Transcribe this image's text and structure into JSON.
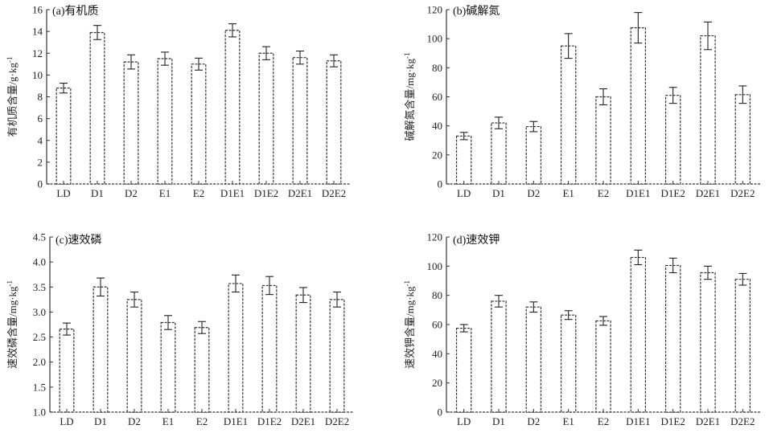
{
  "chart_data": [
    {
      "type": "bar",
      "title": "(a)有机质",
      "ylabel": "有机质含量/g·kg⁻¹",
      "categories": [
        "LD",
        "D1",
        "D2",
        "E1",
        "E2",
        "D1E1",
        "D1E2",
        "D2E1",
        "D2E2"
      ],
      "values": [
        8.8,
        13.9,
        11.2,
        11.5,
        11.0,
        14.1,
        12.0,
        11.6,
        11.3
      ],
      "errors": [
        0.45,
        0.65,
        0.65,
        0.6,
        0.55,
        0.6,
        0.6,
        0.6,
        0.55
      ],
      "ylim": [
        0,
        16
      ],
      "yticks": [
        "0",
        "2",
        "4",
        "6",
        "8",
        "10",
        "12",
        "14",
        "16"
      ],
      "grid": false,
      "error_bars": true
    },
    {
      "type": "bar",
      "title": "(b)碱解氮",
      "ylabel": "碱解氮含量/mg·kg⁻¹",
      "categories": [
        "LD",
        "D1",
        "D2",
        "E1",
        "E2",
        "D1E1",
        "D1E2",
        "D2E1",
        "D2E2"
      ],
      "values": [
        33,
        42,
        39.5,
        95,
        60,
        107.5,
        61,
        102,
        61.5
      ],
      "errors": [
        2.5,
        4,
        3.5,
        8.5,
        5.5,
        10.5,
        5.5,
        9.5,
        6
      ],
      "ylim": [
        0,
        120
      ],
      "yticks": [
        "0",
        "20",
        "40",
        "60",
        "80",
        "100",
        "120"
      ],
      "grid": false,
      "error_bars": true
    },
    {
      "type": "bar",
      "title": "(c)速效磷",
      "ylabel": "速效磷含量/mg·kg⁻¹",
      "categories": [
        "LD",
        "D1",
        "D2",
        "E1",
        "E2",
        "D1E1",
        "D1E2",
        "D2E1",
        "D2E2"
      ],
      "values": [
        2.66,
        3.5,
        3.25,
        2.79,
        2.69,
        3.57,
        3.53,
        3.34,
        3.25
      ],
      "errors": [
        0.12,
        0.18,
        0.15,
        0.14,
        0.12,
        0.17,
        0.18,
        0.15,
        0.15
      ],
      "ylim": [
        1.0,
        4.5
      ],
      "yticks": [
        "1.0",
        "1.5",
        "2.0",
        "2.5",
        "3.0",
        "3.5",
        "4.0",
        "4.5"
      ],
      "grid": false,
      "error_bars": true
    },
    {
      "type": "bar",
      "title": "(d)速效钾",
      "ylabel": "速效钾含量/mg·kg⁻¹",
      "categories": [
        "LD",
        "D1",
        "D2",
        "E1",
        "E2",
        "D1E1",
        "D1E2",
        "D2E1",
        "D2E2"
      ],
      "values": [
        57.5,
        76,
        72,
        66.5,
        62.5,
        106,
        100.5,
        95.5,
        91
      ],
      "errors": [
        2.5,
        4,
        3.5,
        3,
        3,
        5,
        5,
        4.5,
        4
      ],
      "ylim": [
        0,
        120
      ],
      "yticks": [
        "0",
        "20",
        "40",
        "60",
        "80",
        "100",
        "120"
      ],
      "grid": false,
      "error_bars": true
    }
  ]
}
